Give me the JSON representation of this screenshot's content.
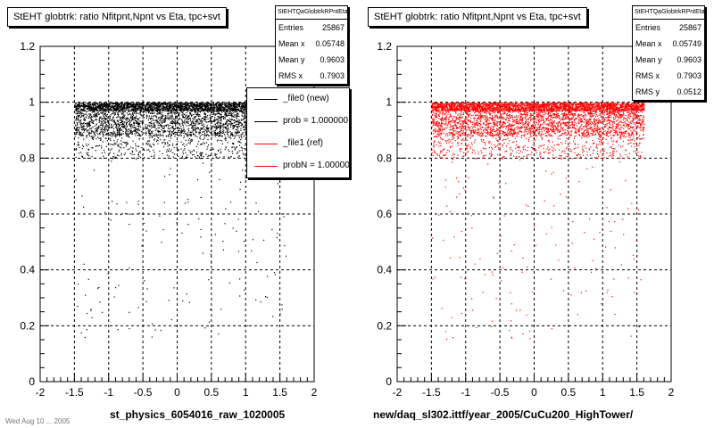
{
  "chart_data": [
    {
      "type": "scatter",
      "title": "StEHT globtrk: ratio Nfitpnt,Npnt vs Eta, tpc+svt",
      "xlabel": "st_physics_6054016_raw_1020005",
      "ylabel": "",
      "xlim": [
        -2,
        2
      ],
      "ylim": [
        0,
        1.2
      ],
      "xticks": [
        "-2",
        "-1.5",
        "-1",
        "-0.5",
        "0",
        "0.5",
        "1",
        "1.5",
        "2"
      ],
      "yticks": [
        "0",
        "0.2",
        "0.4",
        "0.6",
        "0.8",
        "1",
        "1.2"
      ],
      "grid": true,
      "color": "#000000",
      "density": {
        "eta_core": [
          -1.5,
          1.6
        ],
        "ratio_band_1": [
          0.97,
          1.0
        ],
        "ratio_band_2": [
          0.88,
          0.97
        ],
        "sparse_min": 0.15
      },
      "stats": {
        "name": "StEHTQaGlobtrkRPntEtaTS",
        "rows": [
          {
            "label": "Entries",
            "value": "25867"
          },
          {
            "label": "Mean x",
            "value": "0.05748"
          },
          {
            "label": "Mean y",
            "value": "0.9603"
          },
          {
            "label": "RMS x",
            "value": "0.7903"
          }
        ]
      },
      "legend": {
        "placement": "top-right",
        "entries": [
          {
            "label": "_file0 (new)",
            "color": "#000000"
          },
          {
            "label": "prob = 1.000000",
            "color": "#000000"
          },
          {
            "label": "_file1 (ref)",
            "color": "#ff0000"
          },
          {
            "label": "probN = 1.000000",
            "color": "#ff0000"
          }
        ]
      }
    },
    {
      "type": "scatter",
      "title": "StEHT globtrk: ratio Nfitpnt,Npnt vs Eta, tpc+svt",
      "xlabel": "new/daq_sl302.ittf/year_2005/CuCu200_HighTower/",
      "ylabel": "",
      "xlim": [
        -2,
        2
      ],
      "ylim": [
        0,
        1.2
      ],
      "xticks": [
        "-2",
        "-1.5",
        "-1",
        "-0.5",
        "0",
        "0.5",
        "1",
        "1.5",
        "2"
      ],
      "yticks": [
        "0",
        "0.2",
        "0.4",
        "0.6",
        "0.8",
        "1",
        "1.2"
      ],
      "grid": true,
      "color": "#ff0000",
      "density": {
        "eta_core": [
          -1.5,
          1.6
        ],
        "ratio_band_1": [
          0.97,
          1.0
        ],
        "ratio_band_2": [
          0.88,
          0.97
        ],
        "sparse_min": 0.15
      },
      "stats": {
        "name": "StEHTQaGlobtrkRPntEtaTS",
        "rows": [
          {
            "label": "Entries",
            "value": "25867"
          },
          {
            "label": "Mean x",
            "value": "0.05749"
          },
          {
            "label": "Mean y",
            "value": "0.9603"
          },
          {
            "label": "RMS x",
            "value": "0.7903"
          },
          {
            "label": "RMS y",
            "value": "0.0512"
          }
        ]
      }
    }
  ],
  "footnote": "Wed Aug 10 ... 2005"
}
